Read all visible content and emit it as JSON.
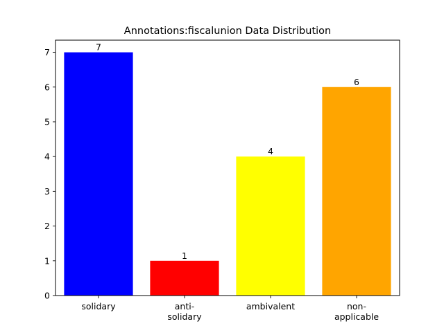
{
  "chart_data": {
    "type": "bar",
    "title": "Annotations:fiscalunion Data Distribution",
    "xlabel": "",
    "ylabel": "",
    "categories": [
      [
        "solidary"
      ],
      [
        "anti-",
        "solidary"
      ],
      [
        "ambivalent"
      ],
      [
        "non-",
        "applicable"
      ]
    ],
    "values": [
      7,
      1,
      4,
      6
    ],
    "colors": [
      "#0000ff",
      "#ff0000",
      "#ffff00",
      "#ffa500"
    ],
    "ylim": [
      0,
      7.35
    ],
    "yticks": [
      0,
      1,
      2,
      3,
      4,
      5,
      6,
      7
    ],
    "grid": false,
    "legend": "none",
    "data_labels": [
      "7",
      "1",
      "4",
      "6"
    ]
  }
}
